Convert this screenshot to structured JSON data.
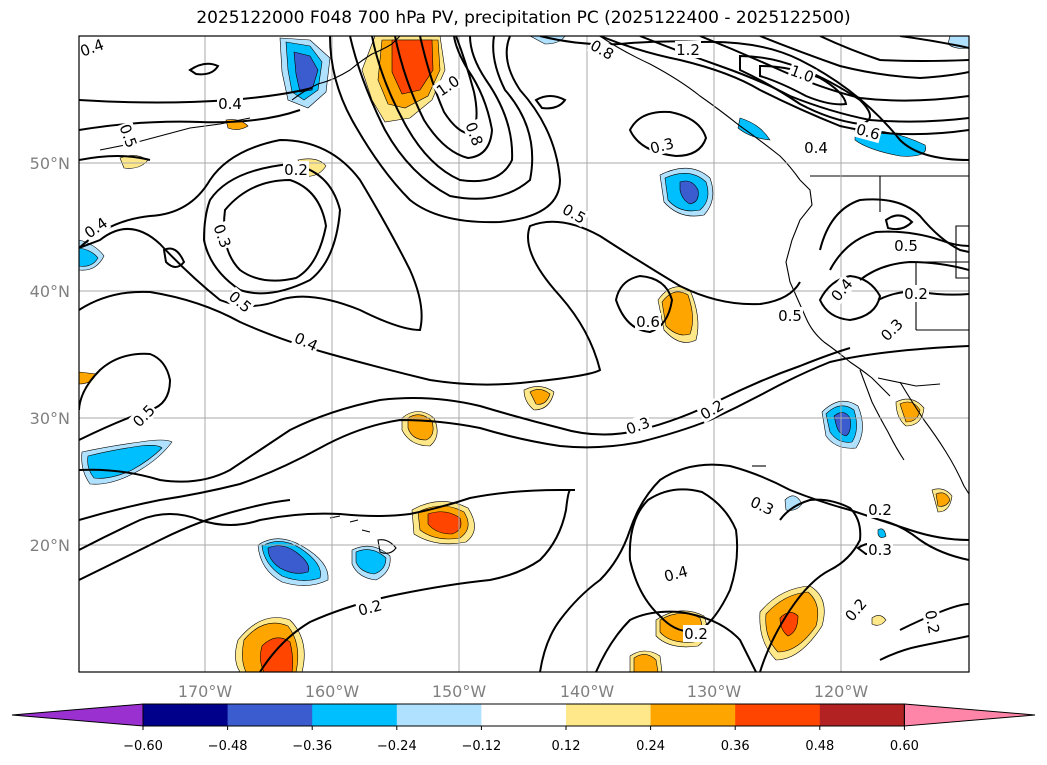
{
  "title": "2025122000 F048 700 hPa PV, precipitation PC (2025122400 - 2025122500)",
  "map": {
    "lat_ticks": [
      "50°N",
      "40°N",
      "30°N",
      "20°N"
    ],
    "lon_ticks": [
      "170°W",
      "160°W",
      "150°W",
      "140°W",
      "130°W",
      "120°W"
    ],
    "lat_range": [
      10,
      60
    ],
    "lon_range": [
      -180,
      -110
    ]
  },
  "contour_labels": [
    {
      "text": "0.4",
      "name": "label-0-4-a"
    },
    {
      "text": "1.2",
      "name": "label-1-2"
    },
    {
      "text": "0.8",
      "name": "label-0-8-a"
    },
    {
      "text": "1.0",
      "name": "label-1-0-a"
    },
    {
      "text": "0.4",
      "name": "label-0-4-b"
    },
    {
      "text": "0.5",
      "name": "label-0-5-a"
    },
    {
      "text": "1.0",
      "name": "label-1-0-b"
    },
    {
      "text": "0.8",
      "name": "label-0-8-b"
    },
    {
      "text": "0.3",
      "name": "label-0-3-a"
    },
    {
      "text": "0.6",
      "name": "label-0-6-a"
    },
    {
      "text": "0.4",
      "name": "label-0-4-c"
    },
    {
      "text": "0.2",
      "name": "label-0-2-a"
    },
    {
      "text": "0.5",
      "name": "label-0-5-b"
    },
    {
      "text": "0.4",
      "name": "label-0-4-d"
    },
    {
      "text": "0.3",
      "name": "label-0-3-b"
    },
    {
      "text": "0.5",
      "name": "label-0-5-c"
    },
    {
      "text": "0.4",
      "name": "label-0-4-e"
    },
    {
      "text": "0.6",
      "name": "label-0-6-b"
    },
    {
      "text": "0.5",
      "name": "label-0-5-d"
    },
    {
      "text": "0.4",
      "name": "label-0-4-f"
    },
    {
      "text": "0.5",
      "name": "label-0-5-e"
    },
    {
      "text": "0.2",
      "name": "label-0-2-b"
    },
    {
      "text": "0.3",
      "name": "label-0-3-c"
    },
    {
      "text": "0.5",
      "name": "label-0-5-f"
    },
    {
      "text": "0.3",
      "name": "label-0-3-d"
    },
    {
      "text": "0.2",
      "name": "label-0-2-c"
    },
    {
      "text": "0.3",
      "name": "label-0-3-e"
    },
    {
      "text": "0.2",
      "name": "label-0-2-d"
    },
    {
      "text": "0.3",
      "name": "label-0-3-f"
    },
    {
      "text": "0.4",
      "name": "label-0-4-g"
    },
    {
      "text": "0.2",
      "name": "label-0-2-e"
    },
    {
      "text": "0.2",
      "name": "label-0-2-f"
    },
    {
      "text": "0.2",
      "name": "label-0-2-g"
    },
    {
      "text": "0.2",
      "name": "label-0-2-h"
    }
  ],
  "colorbar": {
    "ticks": [
      "−0.60",
      "−0.48",
      "−0.36",
      "−0.24",
      "−0.12",
      "0.12",
      "0.24",
      "0.36",
      "0.48",
      "0.60"
    ],
    "colors": [
      "#9b30d0",
      "#00008b",
      "#3a5ccf",
      "#00bfff",
      "#b0e2ff",
      "#ffffff",
      "#ffe88a",
      "#ffa500",
      "#ff4500",
      "#b22222",
      "#ff85a8"
    ]
  }
}
